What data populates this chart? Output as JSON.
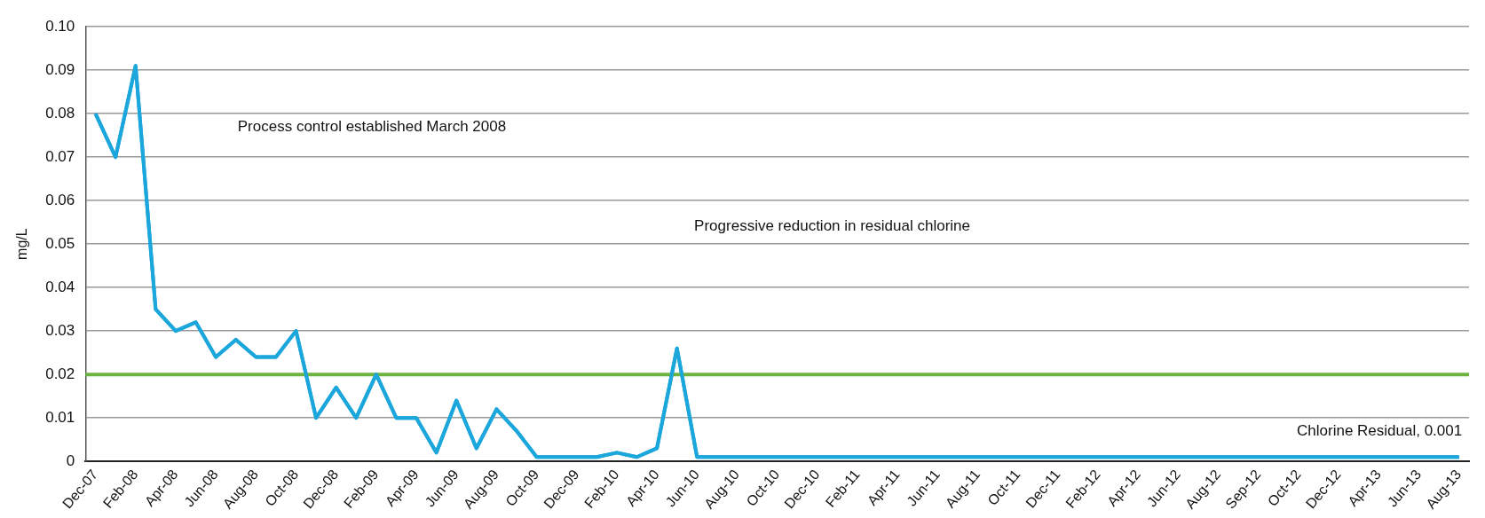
{
  "chart_data": {
    "type": "line",
    "categories": [
      "Dec-07",
      null,
      "Feb-08",
      null,
      "Apr-08",
      null,
      "Jun-08",
      null,
      "Aug-08",
      null,
      "Oct-08",
      null,
      "Dec-08",
      null,
      "Feb-09",
      null,
      "Apr-09",
      null,
      "Jun-09",
      null,
      "Aug-09",
      null,
      "Oct-09",
      null,
      "Dec-09",
      null,
      "Feb-10",
      null,
      "Apr-10",
      null,
      "Jun-10",
      null,
      "Aug-10",
      null,
      "Oct-10",
      null,
      "Dec-10",
      null,
      "Feb-11",
      null,
      "Apr-11",
      null,
      "Jun-11",
      null,
      "Aug-11",
      null,
      "Oct-11",
      null,
      "Dec-11",
      null,
      "Feb-12",
      null,
      "Apr-12",
      null,
      "Jun-12",
      null,
      "Aug-12",
      null,
      "Sep-12",
      null,
      "Oct-12",
      null,
      "Dec-12",
      null,
      "Apr-13",
      null,
      "Jun-13",
      null,
      "Aug-13"
    ],
    "series": [
      {
        "color": "#1ba6dc",
        "values": [
          0.08,
          0.07,
          0.091,
          0.035,
          0.03,
          0.032,
          0.024,
          0.028,
          0.024,
          0.024,
          0.03,
          0.01,
          0.017,
          0.01,
          0.02,
          0.01,
          0.01,
          0.002,
          0.014,
          0.003,
          0.012,
          0.007,
          0.001,
          0.001,
          0.001,
          0.001,
          0.002,
          0.001,
          0.003,
          0.026,
          0.001,
          0.001,
          0.001,
          0.001,
          0.001,
          0.001,
          0.001,
          0.001,
          0.001,
          0.001,
          0.001,
          0.001,
          0.001,
          0.001,
          0.001,
          0.001,
          0.001,
          0.001,
          0.001,
          0.001,
          0.001,
          0.001,
          0.001,
          0.001,
          0.001,
          0.001,
          0.001,
          0.001,
          0.001,
          0.001,
          0.001,
          0.001,
          0.001,
          0.001,
          0.001,
          0.001,
          0.001,
          0.001,
          0.001
        ]
      }
    ],
    "ylabel": "mg/L",
    "ylim": [
      0,
      0.1
    ],
    "yticks": [
      0,
      0.01,
      0.02,
      0.03,
      0.04,
      0.05,
      0.06,
      0.07,
      0.08,
      0.09,
      {
        "value": 0.1,
        "label": "0.10"
      }
    ],
    "ref_lines": [
      {
        "axis": "y",
        "value": 0.02,
        "color": "#6db33f"
      }
    ],
    "annotations": [
      "Process control established March 2008",
      "Progressive reduction in residual chlorine",
      "Chlorine Residual, 0.001"
    ],
    "grid": "y",
    "legend": false,
    "marker": "none",
    "line_style": "solid"
  }
}
